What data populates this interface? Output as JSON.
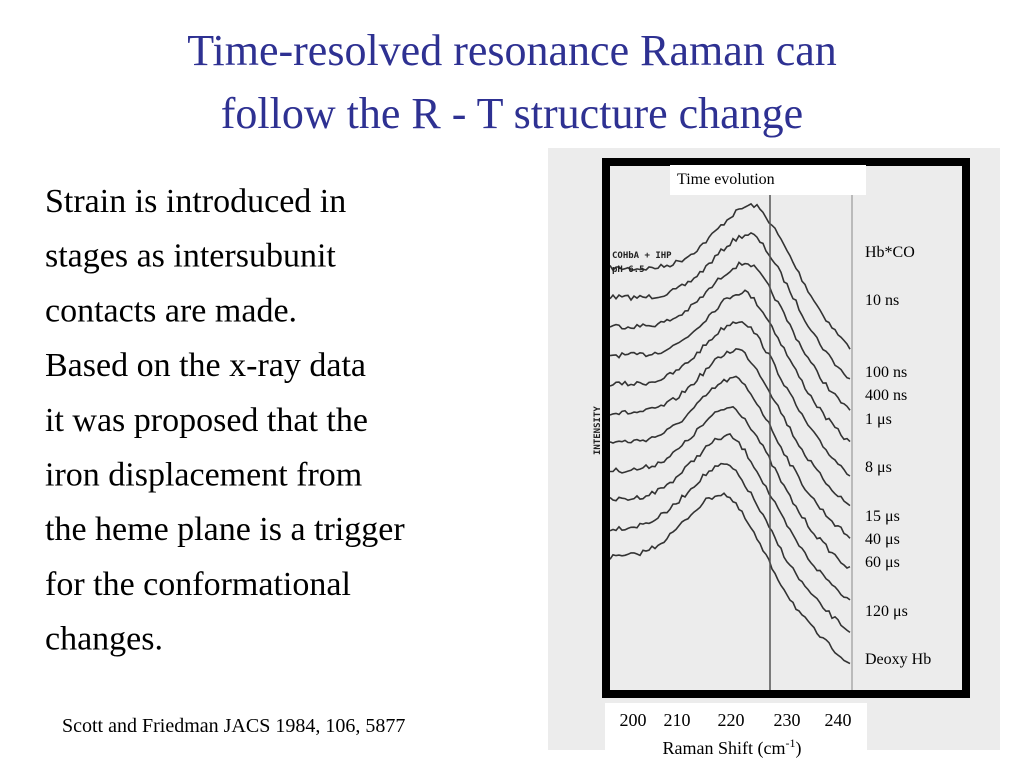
{
  "title": {
    "lines": [
      "Time-resolved resonance Raman can",
      "follow the R - T structure change"
    ]
  },
  "body": {
    "lines": [
      "Strain is introduced in",
      "stages as intersubunit",
      "contacts are made.",
      "Based on the x-ray data",
      "it was proposed that the",
      "iron displacement from",
      "the heme plane is a trigger",
      "for the conformational",
      "changes."
    ]
  },
  "citation": "Scott and Friedman JACS 1984, 106, 5877",
  "figure": {
    "annotation": "Time evolution",
    "sample_label": [
      "COHbA + IHP",
      "pH 6.5"
    ],
    "y_axis_label": "INTENSITY",
    "trace_labels": [
      "Hb*CO",
      "10 ns",
      "100 ns",
      "400 ns",
      "1 μs",
      "8 μs",
      "15 μs",
      "40 μs",
      "60 μs",
      "120 μs",
      "Deoxy Hb"
    ],
    "x_ticks": [
      "200",
      "210",
      "220",
      "230",
      "240"
    ],
    "x_axis_label": {
      "text": "Raman Shift (cm",
      "superscript": "-1",
      "suffix": ")"
    }
  }
}
